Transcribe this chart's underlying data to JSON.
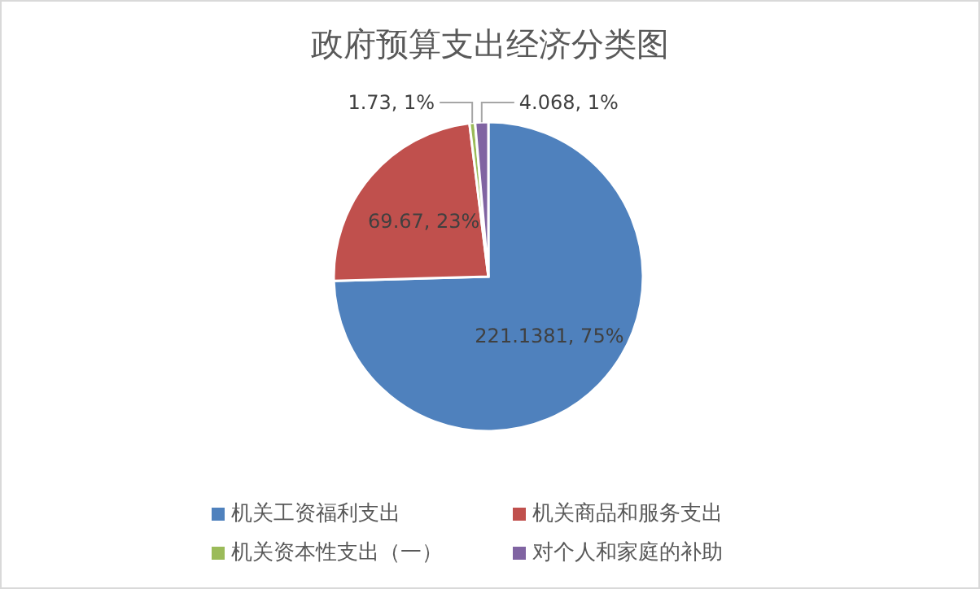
{
  "chart_data": {
    "type": "pie",
    "title": "政府预算支出经济分类图",
    "categories": [
      "机关工资福利支出",
      "机关商品和服务支出",
      "机关资本性支出（一）",
      "对个人和家庭的补助"
    ],
    "values": [
      221.1381,
      69.67,
      1.73,
      4.068
    ],
    "colors": [
      "#4f81bd",
      "#c0504d",
      "#9bbb59",
      "#8064a2"
    ],
    "value_labels": [
      "221.1381, 75%",
      "69.67, 23%",
      "1.73, 1%",
      "4.068, 1%"
    ],
    "legend": "bottom"
  }
}
